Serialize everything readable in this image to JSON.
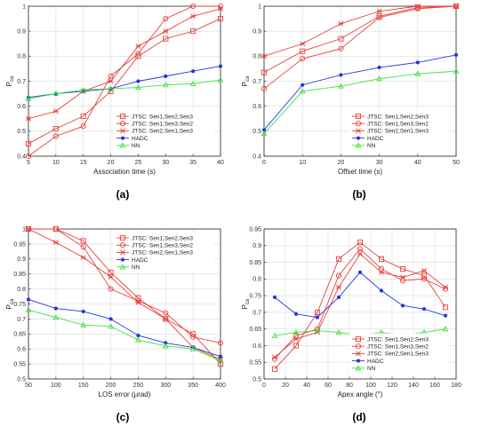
{
  "colors": {
    "red": "#e8413c",
    "blue": "#2437e0",
    "green": "#3ee03e",
    "grid": "#d9d9d9",
    "axis": "#262626"
  },
  "chart_data": [
    {
      "type": "line",
      "panel_label": "(a)",
      "xlabel": "Association time (s)",
      "ylabel": "P",
      "ylabel_sub": "ca",
      "xlim": [
        5,
        40
      ],
      "ylim": [
        0.4,
        1
      ],
      "xticks": [
        5,
        10,
        15,
        20,
        25,
        30,
        35,
        40
      ],
      "yticks": [
        0.4,
        0.5,
        0.6,
        0.7,
        0.8,
        0.9,
        1
      ],
      "xtick_labels": [
        "5",
        "10",
        "15",
        "20",
        "25",
        "30",
        "35",
        "40"
      ],
      "ytick_labels": [
        "0.4",
        "0.5",
        "0.6",
        "0.7",
        "0.8",
        "0.9",
        "1"
      ],
      "grid": true,
      "legend_position": "lower-right",
      "x": [
        5,
        10,
        15,
        20,
        25,
        30,
        35,
        40
      ],
      "series": [
        {
          "name": "JTSC: Sen1,Sen2,Sen3",
          "color": "red",
          "marker": "square",
          "values": [
            0.45,
            0.51,
            0.56,
            0.66,
            0.8,
            0.87,
            0.9,
            0.95
          ]
        },
        {
          "name": "JTSC: Sen1,Sen3,Sen2",
          "color": "red",
          "marker": "circle",
          "values": [
            0.4,
            0.48,
            0.52,
            0.72,
            0.81,
            0.95,
            1.0,
            1.0
          ]
        },
        {
          "name": "JTSC: Sen2,Sen1,Sen3",
          "color": "red",
          "marker": "star",
          "values": [
            0.55,
            0.58,
            0.66,
            0.7,
            0.84,
            0.9,
            0.96,
            0.99
          ]
        },
        {
          "name": "HADC",
          "color": "blue",
          "marker": "dot",
          "values": [
            0.635,
            0.65,
            0.66,
            0.67,
            0.7,
            0.72,
            0.74,
            0.76
          ]
        },
        {
          "name": "NN",
          "color": "green",
          "marker": "triangle",
          "values": [
            0.63,
            0.65,
            0.665,
            0.67,
            0.675,
            0.685,
            0.69,
            0.705
          ]
        }
      ]
    },
    {
      "type": "line",
      "panel_label": "(b)",
      "xlabel": "Offset time (s)",
      "ylabel": "P",
      "ylabel_sub": "ca",
      "xlim": [
        0,
        50
      ],
      "ylim": [
        0.4,
        1
      ],
      "xticks": [
        0,
        10,
        20,
        30,
        40,
        50
      ],
      "yticks": [
        0.4,
        0.5,
        0.6,
        0.7,
        0.8,
        0.9,
        1
      ],
      "xtick_labels": [
        "0",
        "10",
        "20",
        "30",
        "40",
        "50"
      ],
      "ytick_labels": [
        "0.4",
        "0.5",
        "0.6",
        "0.7",
        "0.8",
        "0.9",
        "1"
      ],
      "grid": true,
      "legend_position": "lower-right",
      "x": [
        0,
        10,
        20,
        30,
        40,
        50
      ],
      "series": [
        {
          "name": "JTSC: Sen1,Sen2,Sen3",
          "color": "red",
          "marker": "square",
          "values": [
            0.735,
            0.82,
            0.87,
            0.96,
            0.995,
            1.0
          ]
        },
        {
          "name": "JTSC: Sen1,Sen3,Sen2",
          "color": "red",
          "marker": "circle",
          "values": [
            0.67,
            0.79,
            0.83,
            0.955,
            0.99,
            1.0
          ]
        },
        {
          "name": "JTSC: Sen2,Sen1,Sen3",
          "color": "red",
          "marker": "star",
          "values": [
            0.8,
            0.85,
            0.93,
            0.98,
            1.0,
            1.0
          ]
        },
        {
          "name": "HADC",
          "color": "blue",
          "marker": "dot",
          "values": [
            0.505,
            0.685,
            0.725,
            0.755,
            0.775,
            0.805
          ]
        },
        {
          "name": "NN",
          "color": "green",
          "marker": "triangle",
          "values": [
            0.49,
            0.66,
            0.68,
            0.71,
            0.73,
            0.74
          ]
        }
      ]
    },
    {
      "type": "line",
      "panel_label": "(c)",
      "xlabel": "LOS error (μrad)",
      "ylabel": "P",
      "ylabel_sub": "ca",
      "xlim": [
        50,
        400
      ],
      "ylim": [
        0.5,
        1
      ],
      "xticks": [
        50,
        100,
        150,
        200,
        250,
        300,
        350,
        400
      ],
      "yticks": [
        0.5,
        0.55,
        0.6,
        0.65,
        0.7,
        0.75,
        0.8,
        0.85,
        0.9,
        0.95,
        1
      ],
      "xtick_labels": [
        "50",
        "100",
        "150",
        "200",
        "250",
        "300",
        "350",
        "400"
      ],
      "ytick_labels": [
        "0.5",
        "0.55",
        "0.6",
        "0.65",
        "0.7",
        "0.75",
        "0.8",
        "0.85",
        "0.9",
        "0.95",
        "1"
      ],
      "grid": true,
      "legend_position": "upper-right",
      "x": [
        50,
        100,
        150,
        200,
        250,
        300,
        350,
        400
      ],
      "series": [
        {
          "name": "JTSC: Sen1,Sen2,Sen3",
          "color": "red",
          "marker": "square",
          "values": [
            1.0,
            1.0,
            0.96,
            0.855,
            0.77,
            0.7,
            0.65,
            0.55
          ]
        },
        {
          "name": "JTSC: Sen1,Sen3,Sen2",
          "color": "red",
          "marker": "circle",
          "values": [
            1.0,
            1.0,
            0.94,
            0.8,
            0.76,
            0.72,
            0.64,
            0.62
          ]
        },
        {
          "name": "JTSC: Sen2,Sen1,Sen3",
          "color": "red",
          "marker": "star",
          "values": [
            1.0,
            0.955,
            0.905,
            0.84,
            0.755,
            0.7,
            0.605,
            0.565
          ]
        },
        {
          "name": "HADC",
          "color": "blue",
          "marker": "dot",
          "values": [
            0.765,
            0.735,
            0.725,
            0.7,
            0.645,
            0.62,
            0.605,
            0.575
          ]
        },
        {
          "name": "NN",
          "color": "green",
          "marker": "triangle",
          "values": [
            0.73,
            0.705,
            0.68,
            0.675,
            0.63,
            0.61,
            0.6,
            0.56
          ]
        }
      ]
    },
    {
      "type": "line",
      "panel_label": "(d)",
      "xlabel": "Apex angle (°)",
      "ylabel": "P",
      "ylabel_sub": "ca",
      "xlim": [
        0,
        180
      ],
      "ylim": [
        0.5,
        0.95
      ],
      "xticks": [
        0,
        20,
        40,
        60,
        80,
        100,
        120,
        140,
        160,
        180
      ],
      "yticks": [
        0.5,
        0.55,
        0.6,
        0.65,
        0.7,
        0.75,
        0.8,
        0.85,
        0.9,
        0.95
      ],
      "xtick_labels": [
        "0",
        "20",
        "40",
        "60",
        "80",
        "100",
        "120",
        "140",
        "160",
        "180"
      ],
      "ytick_labels": [
        "0.5",
        "0.55",
        "0.6",
        "0.65",
        "0.7",
        "0.75",
        "0.8",
        "0.85",
        "0.9",
        "0.95"
      ],
      "grid": true,
      "legend_position": "lower-right",
      "x": [
        10,
        30,
        50,
        70,
        90,
        110,
        130,
        150,
        170
      ],
      "series": [
        {
          "name": "JTSC: Sen1,Sen2,Sen3",
          "color": "red",
          "marker": "square",
          "values": [
            0.53,
            0.6,
            0.7,
            0.86,
            0.91,
            0.86,
            0.83,
            0.81,
            0.715
          ]
        },
        {
          "name": "JTSC: Sen1,Sen3,Sen2",
          "color": "red",
          "marker": "circle",
          "values": [
            0.56,
            0.63,
            0.65,
            0.81,
            0.89,
            0.83,
            0.795,
            0.8,
            0.77
          ]
        },
        {
          "name": "JTSC: Sen2,Sen1,Sen3",
          "color": "red",
          "marker": "star",
          "values": [
            0.565,
            0.62,
            0.64,
            0.775,
            0.875,
            0.82,
            0.805,
            0.825,
            0.775
          ]
        },
        {
          "name": "HADC",
          "color": "blue",
          "marker": "dot",
          "values": [
            0.745,
            0.695,
            0.685,
            0.745,
            0.82,
            0.765,
            0.72,
            0.71,
            0.69
          ]
        },
        {
          "name": "NN",
          "color": "green",
          "marker": "triangle",
          "values": [
            0.63,
            0.64,
            0.645,
            0.64,
            0.63,
            0.64,
            0.63,
            0.64,
            0.65
          ]
        }
      ]
    }
  ]
}
